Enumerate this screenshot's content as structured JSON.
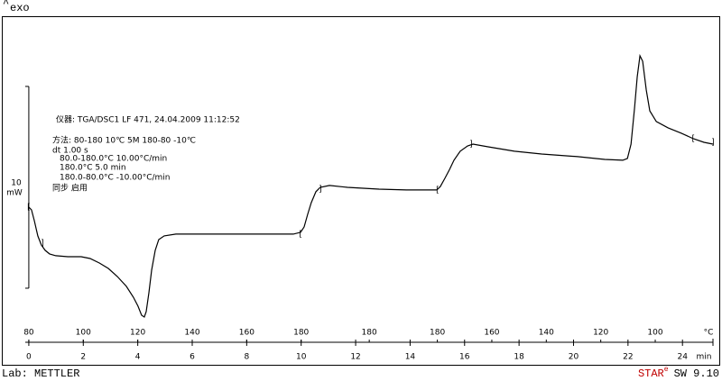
{
  "chart_data": {
    "type": "line",
    "exo_label": "exo",
    "info_lines": [
      "仪器: TGA/DSC1 LF 471, 24.04.2009 11:12:52",
      "方法: 80-180 10℃ 5M 180-80 -10℃",
      "dt 1.00 s",
      "80.0-180.0°C 10.00°C/min",
      "180.0°C 5.0 min",
      "180.0-80.0°C -10.00°C/min",
      "同步 启用"
    ],
    "scale_bar": {
      "value": 10,
      "unit": "mW"
    },
    "x_unit": "min",
    "x2_unit": "°C",
    "xlim": [
      -0.13,
      25.12
    ],
    "ylim": [
      -2.68,
      13.48
    ],
    "xticks": [
      0,
      2,
      4,
      6,
      8,
      10,
      12,
      14,
      16,
      18,
      20,
      22,
      24
    ],
    "x2ticks": [
      {
        "value": 0,
        "label": "80"
      },
      {
        "value": 2,
        "label": "100"
      },
      {
        "value": 4,
        "label": "120"
      },
      {
        "value": 6,
        "label": "140"
      },
      {
        "value": 8,
        "label": "160"
      },
      {
        "value": 10,
        "label": "180"
      },
      {
        "value": 12.5,
        "label": "180"
      },
      {
        "value": 15,
        "label": "180"
      },
      {
        "value": 17,
        "label": "160"
      },
      {
        "value": 19,
        "label": "140"
      },
      {
        "value": 21,
        "label": "120"
      },
      {
        "value": 23,
        "label": "100"
      }
    ],
    "series": [
      {
        "color": "#000000",
        "x": [
          0,
          0.1,
          0.2,
          0.33,
          0.46,
          0.6,
          0.76,
          0.99,
          1.43,
          1.92,
          2.25,
          2.59,
          2.92,
          3.25,
          3.58,
          3.84,
          4.01,
          4.14,
          4.24,
          4.31,
          4.41,
          4.51,
          4.64,
          4.77,
          4.97,
          5.4,
          6.23,
          7.56,
          8.88,
          9.71,
          9.98,
          10.11,
          10.24,
          10.37,
          10.54,
          10.7,
          11.04,
          11.7,
          12.86,
          13.86,
          14.98,
          15.11,
          15.28,
          15.45,
          15.61,
          15.84,
          16.11,
          16.31,
          16.84,
          17.83,
          18.83,
          20.15,
          21.15,
          21.81,
          21.98,
          22.11,
          22.24,
          22.34,
          22.44,
          22.54,
          22.67,
          22.8,
          23.04,
          23.47,
          23.96,
          24.4,
          24.79,
          25.12
        ],
        "values": [
          4.02,
          3.88,
          3.35,
          2.59,
          2.14,
          1.88,
          1.7,
          1.61,
          1.56,
          1.56,
          1.47,
          1.25,
          0.98,
          0.58,
          0.09,
          -0.45,
          -0.89,
          -1.34,
          -1.43,
          -1.16,
          -0.22,
          0.89,
          1.88,
          2.41,
          2.59,
          2.68,
          2.68,
          2.68,
          2.68,
          2.68,
          2.77,
          3.04,
          3.66,
          4.24,
          4.78,
          5.0,
          5.09,
          5.0,
          4.91,
          4.87,
          4.87,
          5.04,
          5.45,
          5.89,
          6.34,
          6.79,
          7.05,
          7.14,
          7.01,
          6.79,
          6.65,
          6.52,
          6.38,
          6.34,
          6.43,
          7.14,
          8.93,
          10.49,
          11.52,
          11.25,
          9.82,
          8.79,
          8.26,
          7.95,
          7.68,
          7.41,
          7.23,
          7.14
        ]
      }
    ],
    "limit_markers": [
      {
        "x": 0,
        "value": 4.02,
        "label": "["
      },
      {
        "x": 0.5,
        "value": 2.23,
        "label": "]"
      },
      {
        "x": 9.98,
        "value": 2.68,
        "label": "["
      },
      {
        "x": 10.7,
        "value": 4.91,
        "label": "]"
      },
      {
        "x": 15.01,
        "value": 4.87,
        "label": "["
      },
      {
        "x": 16.24,
        "value": 7.14,
        "label": "]"
      },
      {
        "x": 24.4,
        "value": 7.41,
        "label": "["
      },
      {
        "x": 25.12,
        "value": 7.23,
        "label": "]"
      }
    ],
    "footer_left": "Lab: METTLER",
    "footer_brand": "STAR",
    "footer_brand_sup": "e",
    "footer_version": "SW 9.10"
  }
}
